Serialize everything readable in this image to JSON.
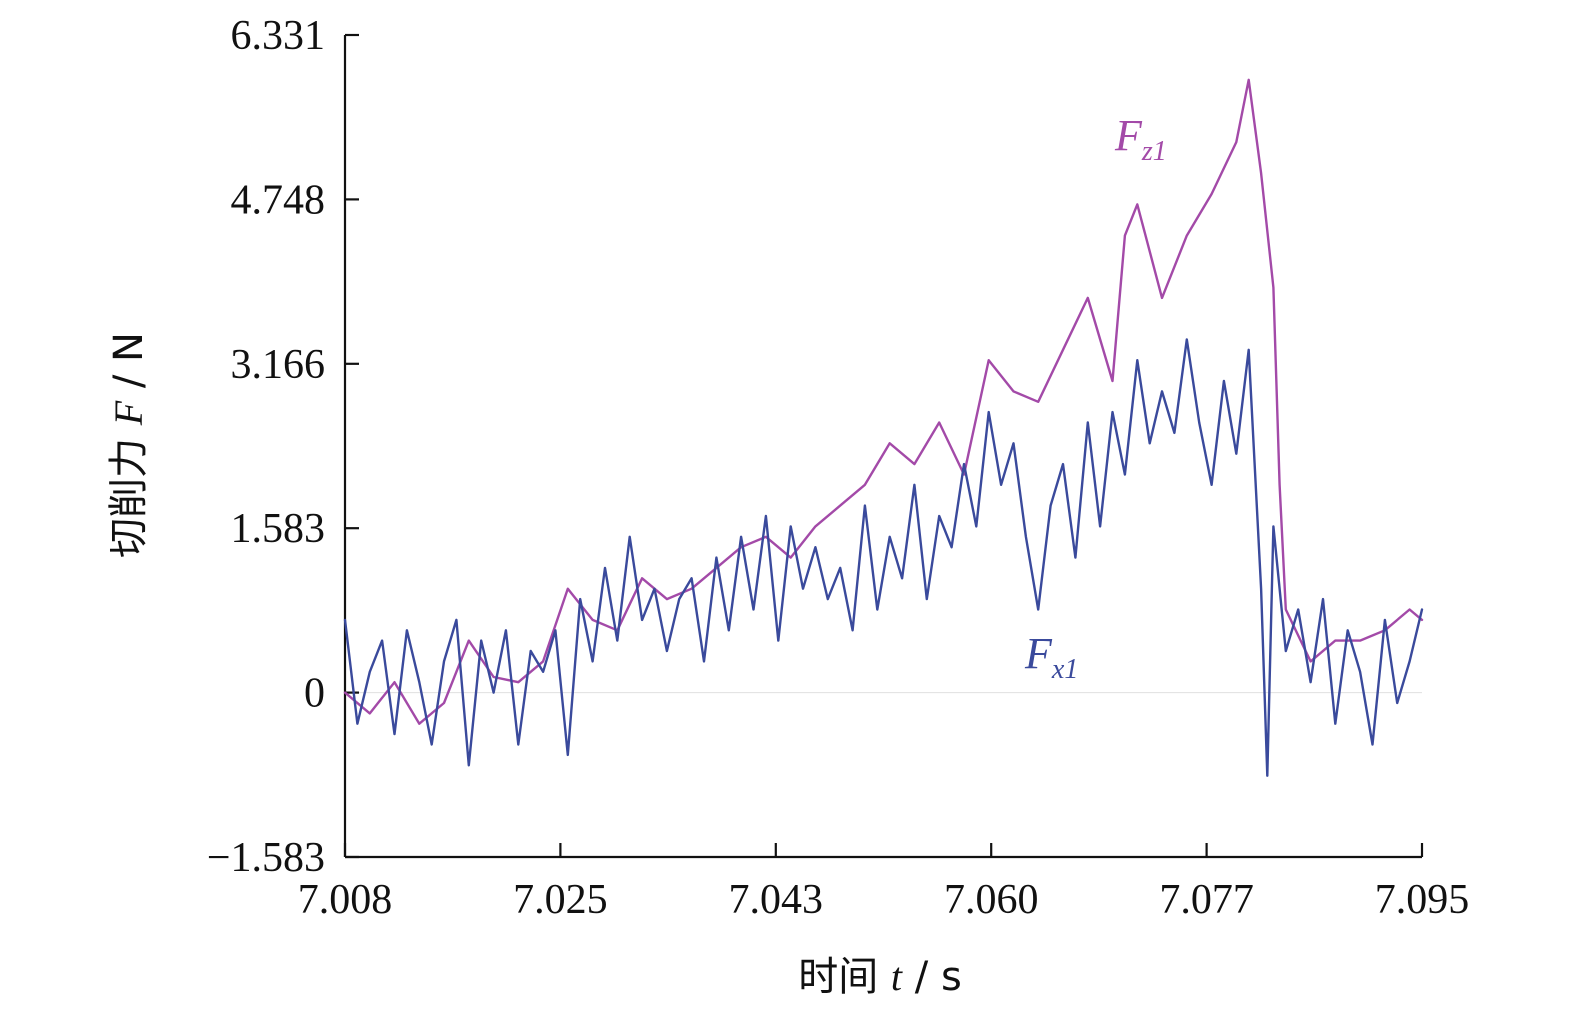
{
  "chart_data": {
    "type": "line",
    "xlabel": {
      "prefix": "时间 ",
      "var": "t",
      "suffix": " / s"
    },
    "ylabel": {
      "prefix": "切削力 ",
      "var": "F",
      "suffix": " / N"
    },
    "xlim": [
      7.008,
      7.095
    ],
    "ylim": [
      -1.583,
      6.331
    ],
    "x_ticks": [
      "7.008",
      "7.025",
      "7.043",
      "7.060",
      "7.077",
      "7.095"
    ],
    "y_ticks": [
      "6.331",
      "4.748",
      "3.166",
      "1.583",
      "0",
      "−1.583"
    ],
    "grid": false,
    "colors": {
      "Fz1": "#a34aa8",
      "Fx1": "#3a4a9c",
      "axis": "#111111"
    },
    "series": [
      {
        "name": "Fz1",
        "label_main": "F",
        "label_sub": "z1",
        "x": [
          7.008,
          7.01,
          7.012,
          7.014,
          7.016,
          7.018,
          7.02,
          7.022,
          7.024,
          7.026,
          7.028,
          7.03,
          7.032,
          7.034,
          7.036,
          7.038,
          7.04,
          7.042,
          7.044,
          7.046,
          7.048,
          7.05,
          7.052,
          7.054,
          7.056,
          7.058,
          7.06,
          7.062,
          7.064,
          7.066,
          7.068,
          7.07,
          7.071,
          7.072,
          7.074,
          7.076,
          7.078,
          7.08,
          7.081,
          7.082,
          7.083,
          7.0835,
          7.084,
          7.086,
          7.088,
          7.09,
          7.092,
          7.094,
          7.095
        ],
        "y": [
          0.0,
          -0.2,
          0.1,
          -0.3,
          -0.1,
          0.5,
          0.15,
          0.1,
          0.3,
          1.0,
          0.7,
          0.6,
          1.1,
          0.9,
          1.0,
          1.2,
          1.4,
          1.5,
          1.3,
          1.6,
          1.8,
          2.0,
          2.4,
          2.2,
          2.6,
          2.1,
          3.2,
          2.9,
          2.8,
          3.3,
          3.8,
          3.0,
          4.4,
          4.7,
          3.8,
          4.4,
          4.8,
          5.3,
          5.9,
          5.0,
          3.9,
          2.0,
          0.8,
          0.3,
          0.5,
          0.5,
          0.6,
          0.8,
          0.7
        ]
      },
      {
        "name": "Fx1",
        "label_main": "F",
        "label_sub": "x1",
        "x": [
          7.008,
          7.009,
          7.01,
          7.011,
          7.012,
          7.013,
          7.014,
          7.015,
          7.016,
          7.017,
          7.018,
          7.019,
          7.02,
          7.021,
          7.022,
          7.023,
          7.024,
          7.025,
          7.026,
          7.027,
          7.028,
          7.029,
          7.03,
          7.031,
          7.032,
          7.033,
          7.034,
          7.035,
          7.036,
          7.037,
          7.038,
          7.039,
          7.04,
          7.041,
          7.042,
          7.043,
          7.044,
          7.045,
          7.046,
          7.047,
          7.048,
          7.049,
          7.05,
          7.051,
          7.052,
          7.053,
          7.054,
          7.055,
          7.056,
          7.057,
          7.058,
          7.059,
          7.06,
          7.061,
          7.062,
          7.063,
          7.064,
          7.065,
          7.066,
          7.067,
          7.068,
          7.069,
          7.07,
          7.071,
          7.072,
          7.073,
          7.074,
          7.075,
          7.076,
          7.077,
          7.078,
          7.079,
          7.08,
          7.081,
          7.082,
          7.0825,
          7.083,
          7.084,
          7.085,
          7.086,
          7.087,
          7.088,
          7.089,
          7.09,
          7.091,
          7.092,
          7.093,
          7.094,
          7.095
        ],
        "y": [
          0.7,
          -0.3,
          0.2,
          0.5,
          -0.4,
          0.6,
          0.1,
          -0.5,
          0.3,
          0.7,
          -0.7,
          0.5,
          0.0,
          0.6,
          -0.5,
          0.4,
          0.2,
          0.6,
          -0.6,
          0.9,
          0.3,
          1.2,
          0.5,
          1.5,
          0.7,
          1.0,
          0.4,
          0.9,
          1.1,
          0.3,
          1.3,
          0.6,
          1.5,
          0.8,
          1.7,
          0.5,
          1.6,
          1.0,
          1.4,
          0.9,
          1.2,
          0.6,
          1.8,
          0.8,
          1.5,
          1.1,
          2.0,
          0.9,
          1.7,
          1.4,
          2.2,
          1.6,
          2.7,
          2.0,
          2.4,
          1.5,
          0.8,
          1.8,
          2.2,
          1.3,
          2.6,
          1.6,
          2.7,
          2.1,
          3.2,
          2.4,
          2.9,
          2.5,
          3.4,
          2.6,
          2.0,
          3.0,
          2.3,
          3.3,
          1.0,
          -0.8,
          1.6,
          0.4,
          0.8,
          0.1,
          0.9,
          -0.3,
          0.6,
          0.2,
          -0.5,
          0.7,
          -0.1,
          0.3,
          0.8
        ]
      }
    ]
  }
}
